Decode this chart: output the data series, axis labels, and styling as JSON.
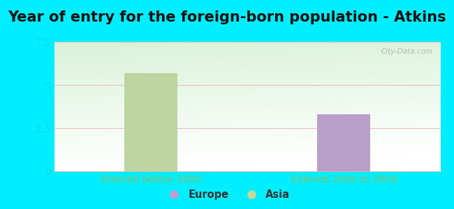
{
  "title": "Year of entry for the foreign-born population - Atkins",
  "groups": [
    "Entered before 2000",
    "Entered 2000 to 2009"
  ],
  "asia_values": [
    5.7,
    0
  ],
  "europe_values": [
    0,
    3.3
  ],
  "asia_color": "#bdd5a0",
  "europe_color": "#b99fc8",
  "ylim": [
    0,
    7.5
  ],
  "yticks": [
    0,
    2.5,
    5.0,
    7.5
  ],
  "background_outer": "#00eeff",
  "title_fontsize": 15,
  "xtick_fontsize": 10,
  "ytick_fontsize": 10,
  "legend_labels": [
    "Europe",
    "Asia"
  ],
  "legend_colors": [
    "#c0a0d0",
    "#c5d898"
  ],
  "watermark": "City-Data.com",
  "bar_width": 0.55,
  "group_positions": [
    1.0,
    3.0
  ],
  "xlim": [
    0.0,
    4.0
  ]
}
